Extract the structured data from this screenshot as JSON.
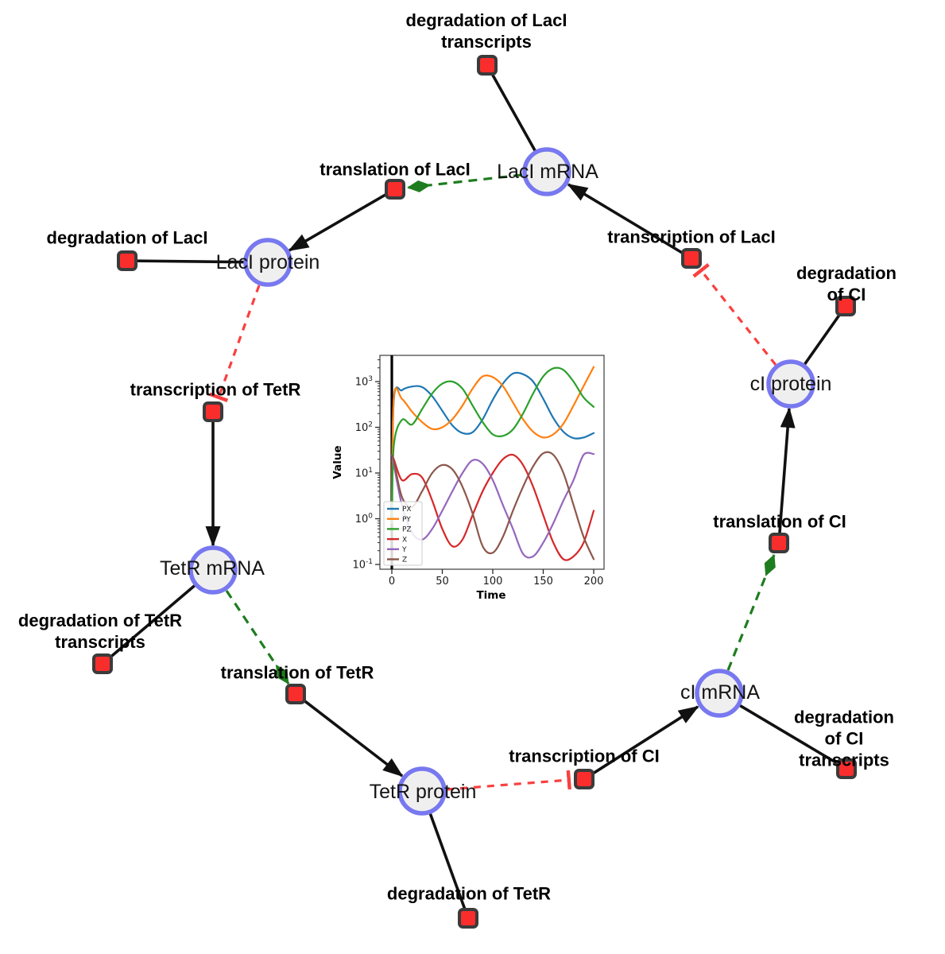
{
  "network": {
    "species": [
      {
        "id": "laci-mrna",
        "label": "LacI mRNA"
      },
      {
        "id": "laci-protein",
        "label": "LacI protein"
      },
      {
        "id": "tetr-mrna",
        "label": "TetR mRNA"
      },
      {
        "id": "tetr-protein",
        "label": "TetR protein"
      },
      {
        "id": "ci-mrna",
        "label": "cI mRNA"
      },
      {
        "id": "ci-protein",
        "label": "cI protein"
      }
    ],
    "reactions": [
      {
        "id": "degradation-laci-transcripts",
        "label": "degradation of LacI\ntranscripts"
      },
      {
        "id": "translation-laci",
        "label": "translation of LacI"
      },
      {
        "id": "transcription-laci",
        "label": "transcription of LacI"
      },
      {
        "id": "degradation-laci",
        "label": "degradation of LacI"
      },
      {
        "id": "transcription-tetr",
        "label": "transcription of TetR"
      },
      {
        "id": "degradation-tetr-transcripts",
        "label": "degradation of TetR\ntranscripts"
      },
      {
        "id": "translation-tetr",
        "label": "translation of TetR"
      },
      {
        "id": "degradation-tetr",
        "label": "degradation of TetR"
      },
      {
        "id": "transcription-ci",
        "label": "transcription of CI"
      },
      {
        "id": "degradation-ci-transcripts",
        "label": "degradation of CI\ntranscripts"
      },
      {
        "id": "translation-ci",
        "label": "translation of CI"
      },
      {
        "id": "degradation-ci",
        "label": "degradation of CI"
      }
    ],
    "colors": {
      "species_fill": "#efefef",
      "species_border": "#7878f0",
      "reaction_fill": "#fa2d2d",
      "reaction_border": "#3b3b3b",
      "edge_plain": "#111111",
      "edge_activation": "#1e7d1e",
      "edge_inhibition": "#f94040"
    }
  },
  "chart_data": {
    "type": "line",
    "title": "",
    "xlabel": "Time",
    "ylabel": "Value",
    "y_scale": "log",
    "grid": false,
    "x_ticks": [
      0,
      50,
      100,
      150,
      200
    ],
    "y_tick_exponents": [
      -1,
      0,
      1,
      2,
      3
    ],
    "xlim": [
      -12,
      210
    ],
    "ylim": [
      0.08,
      3700
    ],
    "axvline": {
      "x": 0,
      "color": "#000000"
    },
    "legend": {
      "position": "lower left",
      "entries": [
        "PX",
        "PY",
        "PZ",
        "X",
        "Y",
        "Z"
      ]
    },
    "x": [
      0,
      2,
      10,
      20,
      30,
      40,
      50,
      60,
      70,
      80,
      90,
      100,
      110,
      120,
      130,
      140,
      150,
      160,
      170,
      180,
      190,
      200
    ],
    "series": [
      {
        "name": "PX",
        "color": "#1f77b4",
        "values": [
          0.8,
          400,
          650,
          780,
          760,
          480,
          230,
          110,
          75,
          78,
          150,
          400,
          900,
          1500,
          1450,
          1000,
          420,
          160,
          80,
          58,
          60,
          75
        ]
      },
      {
        "name": "PY",
        "color": "#ff7f0e",
        "values": [
          0.8,
          450,
          420,
          220,
          130,
          92,
          100,
          150,
          300,
          700,
          1300,
          1250,
          800,
          350,
          150,
          80,
          60,
          70,
          120,
          300,
          800,
          2100
        ]
      },
      {
        "name": "PZ",
        "color": "#2ca02c",
        "values": [
          0.8,
          40,
          145,
          115,
          250,
          550,
          900,
          1000,
          700,
          300,
          130,
          70,
          65,
          90,
          200,
          550,
          1300,
          1950,
          1800,
          1000,
          450,
          280
        ]
      },
      {
        "name": "X",
        "color": "#d62728",
        "values": [
          25,
          20,
          7,
          9.5,
          8,
          2.5,
          0.6,
          0.25,
          0.35,
          1.2,
          4,
          10,
          20,
          25,
          15,
          5,
          1.2,
          0.3,
          0.13,
          0.15,
          0.3,
          1.5
        ]
      },
      {
        "name": "Y",
        "color": "#9467bd",
        "values": [
          25,
          15,
          2,
          0.5,
          0.35,
          0.6,
          1.5,
          4,
          10,
          19,
          16,
          7,
          2,
          0.6,
          0.17,
          0.15,
          0.3,
          0.8,
          2.5,
          7,
          25,
          26
        ]
      },
      {
        "name": "Z",
        "color": "#8c564b",
        "values": [
          25,
          18,
          3,
          1.8,
          4,
          10,
          15,
          12,
          5,
          1.3,
          0.25,
          0.18,
          0.4,
          1.5,
          5,
          14,
          27,
          25,
          10,
          2,
          0.4,
          0.13
        ]
      }
    ]
  }
}
